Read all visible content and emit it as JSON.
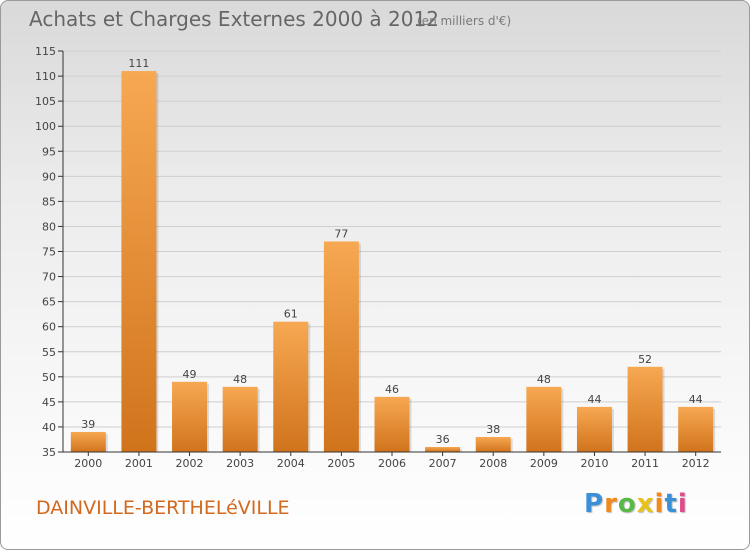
{
  "header": {
    "title": "Achats et Charges Externes 2000 à 2012",
    "subtitle": "(en milliers d'€)"
  },
  "footer": {
    "commune": "DAINVILLE-BERTHELéVILLE",
    "logo_letters": [
      "P",
      "r",
      "o",
      "x",
      "i",
      "t",
      "i"
    ],
    "logo_colors": [
      "#3a8fd6",
      "#f08a1c",
      "#58b947",
      "#e8c21c",
      "#f08a1c",
      "#3a8fd6",
      "#e04a8a"
    ]
  },
  "colors": {
    "bar_light": "#f7a852",
    "bar_dark": "#d0741c",
    "grid": "#cfcfcf",
    "axis": "#333333"
  },
  "chart_data": {
    "type": "bar",
    "categories": [
      "2000",
      "2001",
      "2002",
      "2003",
      "2004",
      "2005",
      "2006",
      "2007",
      "2008",
      "2009",
      "2010",
      "2011",
      "2012"
    ],
    "values": [
      39,
      111,
      49,
      48,
      61,
      77,
      46,
      36,
      38,
      48,
      44,
      52,
      44
    ],
    "title": "Achats et Charges Externes 2000 à 2012",
    "subtitle": "(en milliers d'€)",
    "xlabel": "",
    "ylabel": "",
    "ylim": [
      35,
      115
    ],
    "yticks": [
      35,
      40,
      45,
      50,
      55,
      60,
      65,
      70,
      75,
      80,
      85,
      90,
      95,
      100,
      105,
      110,
      115
    ],
    "grid": true,
    "legend": "none"
  }
}
